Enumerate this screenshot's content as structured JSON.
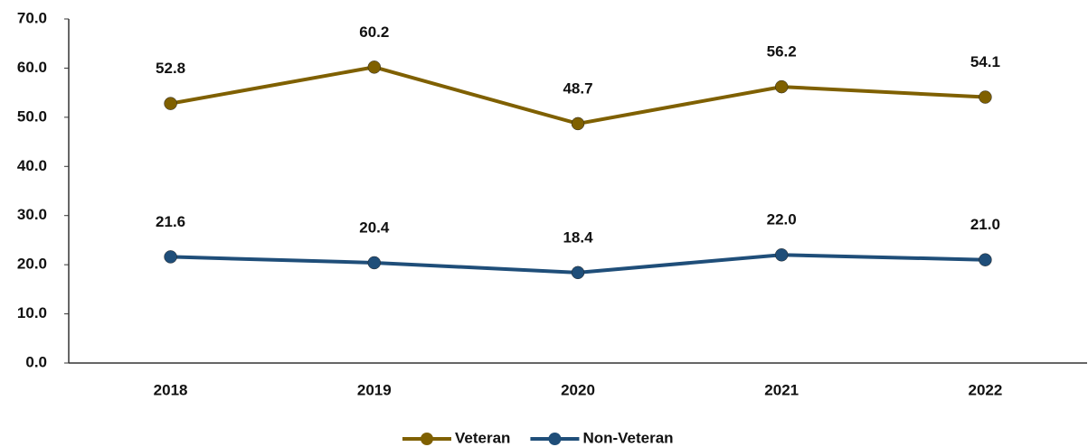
{
  "chart_data": {
    "type": "line",
    "categories": [
      "2018",
      "2019",
      "2020",
      "2021",
      "2022"
    ],
    "series": [
      {
        "name": "Veteran",
        "color": "#7f6000",
        "values": [
          52.8,
          60.2,
          48.7,
          56.2,
          54.1
        ],
        "value_labels": [
          "52.8",
          "60.2",
          "48.7",
          "56.2",
          "54.1"
        ]
      },
      {
        "name": "Non-Veteran",
        "color": "#1f4e79",
        "values": [
          21.6,
          20.4,
          18.4,
          22.0,
          21.0
        ],
        "value_labels": [
          "21.6",
          "20.4",
          "18.4",
          "22.0",
          "21.0"
        ]
      }
    ],
    "ylim": [
      0,
      70
    ],
    "yticks": [
      {
        "value": 0,
        "label": "0.0"
      },
      {
        "value": 10,
        "label": "10.0"
      },
      {
        "value": 20,
        "label": "20.0"
      },
      {
        "value": 30,
        "label": "30.0"
      },
      {
        "value": 40,
        "label": "40.0"
      },
      {
        "value": 50,
        "label": "50.0"
      },
      {
        "value": 60,
        "label": "60.0"
      },
      {
        "value": 70,
        "label": "70.0"
      }
    ],
    "grid": false,
    "legend": "bottom"
  }
}
